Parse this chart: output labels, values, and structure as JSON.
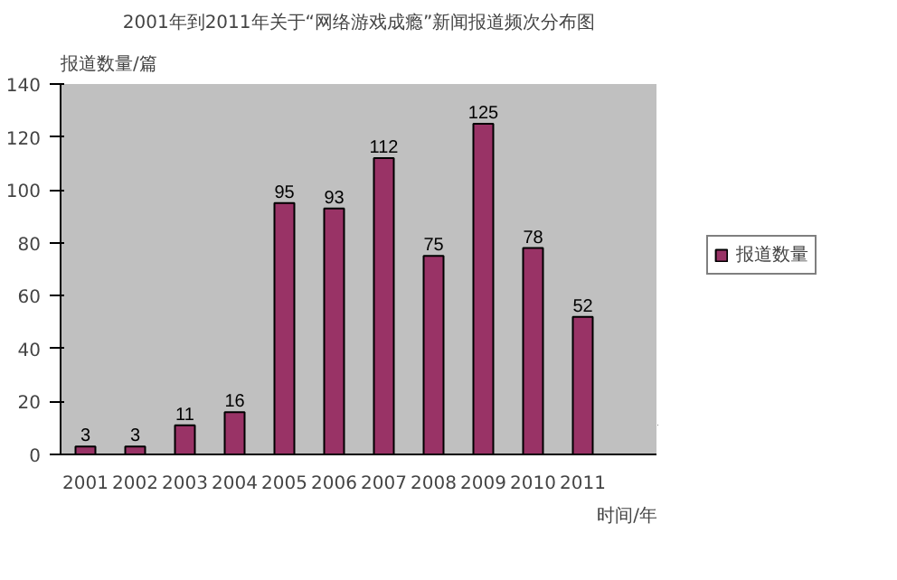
{
  "chart_data": {
    "type": "bar",
    "title": "2001年到2011年关于“网络游戏成瘾”新闻报道频次分布图",
    "xlabel": "时间/年",
    "ylabel": "报道数量/篇",
    "categories": [
      "2001",
      "2002",
      "2003",
      "2004",
      "2005",
      "2006",
      "2007",
      "2008",
      "2009",
      "2010",
      "2011",
      null
    ],
    "series": [
      {
        "name": "报道数量",
        "color": "#993366",
        "values": [
          3,
          3,
          11,
          16,
          95,
          93,
          112,
          75,
          125,
          78,
          52,
          null
        ]
      }
    ],
    "ylim": [
      0,
      140
    ],
    "yticks": [
      0,
      20,
      40,
      60,
      80,
      100,
      120,
      140
    ],
    "grid": false,
    "legend": "right",
    "data_labels": true
  }
}
